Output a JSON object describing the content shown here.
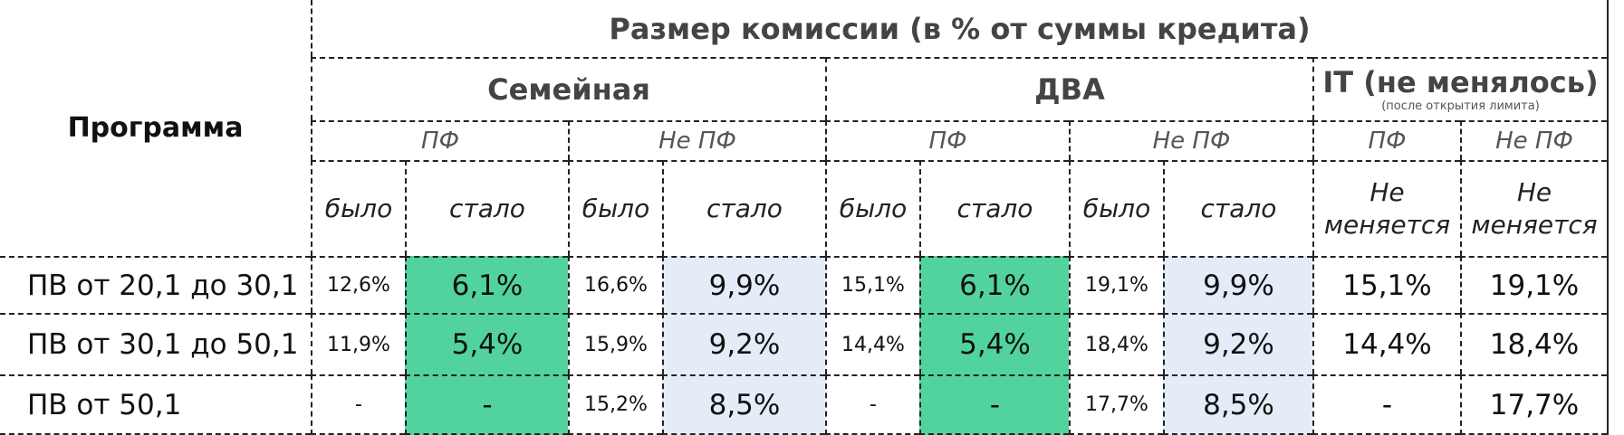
{
  "header": {
    "main_title": "Размер комиссии (в % от суммы кредита)",
    "program_label": "Программа",
    "groups": [
      {
        "name": "Семейная"
      },
      {
        "name": "ДВА"
      },
      {
        "name": "IT  (не менялось)",
        "note": "(после открытия лимита)"
      }
    ],
    "pf_labels": [
      "ПФ",
      "Не ПФ",
      "ПФ",
      "Не ПФ",
      "ПФ",
      "Не ПФ"
    ],
    "sub_labels": [
      "было",
      "стало",
      "было",
      "стало",
      "было",
      "стало",
      "было",
      "стало"
    ],
    "it_sub": [
      "Не меняется",
      "Не меняется"
    ]
  },
  "rows": [
    {
      "label": "ПВ от 20,1 до 30,1",
      "values": [
        "12,6%",
        "6,1%",
        "16,6%",
        "9,9%",
        "15,1%",
        "6,1%",
        "19,1%",
        "9,9%",
        "15,1%",
        "19,1%"
      ]
    },
    {
      "label": "ПВ от 30,1 до 50,1",
      "values": [
        "11,9%",
        "5,4%",
        "15,9%",
        "9,2%",
        "14,4%",
        "5,4%",
        "18,4%",
        "9,2%",
        "14,4%",
        "18,4%"
      ]
    },
    {
      "label": "ПВ от 50,1",
      "values": [
        "-",
        "-",
        "15,2%",
        "8,5%",
        "-",
        "-",
        "17,7%",
        "8,5%",
        "-",
        "17,7%"
      ]
    }
  ],
  "colors": {
    "new_pf": "#52d39e",
    "new_non_pf": "#e4edf7"
  }
}
